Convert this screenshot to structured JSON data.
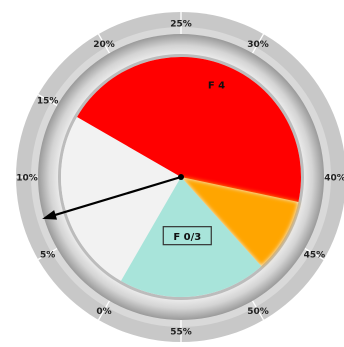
{
  "chart_data": {
    "type": "gauge",
    "scale": {
      "min": 0,
      "max": 60,
      "unit": "%"
    },
    "tick_values": [
      0,
      5,
      10,
      15,
      20,
      25,
      30,
      40,
      45,
      50,
      55
    ],
    "tick_labels": [
      "0%",
      "5%",
      "10%",
      "15%",
      "20%",
      "25%",
      "30%",
      "40%",
      "45%",
      "50%",
      "55%"
    ],
    "bands": [
      {
        "label": "",
        "start": 0,
        "end": 15,
        "color": "#f2f2f2"
      },
      {
        "label": "F 4",
        "start": 15,
        "end": 42,
        "color": "#ff0000"
      },
      {
        "label": "",
        "start": 42,
        "end": 48,
        "color": "#ffa500"
      },
      {
        "label": "F 0/3",
        "start": 48,
        "end": 60,
        "color": "#a8e4da"
      }
    ],
    "needle": {
      "value": 7.2,
      "color": "#000000"
    }
  }
}
